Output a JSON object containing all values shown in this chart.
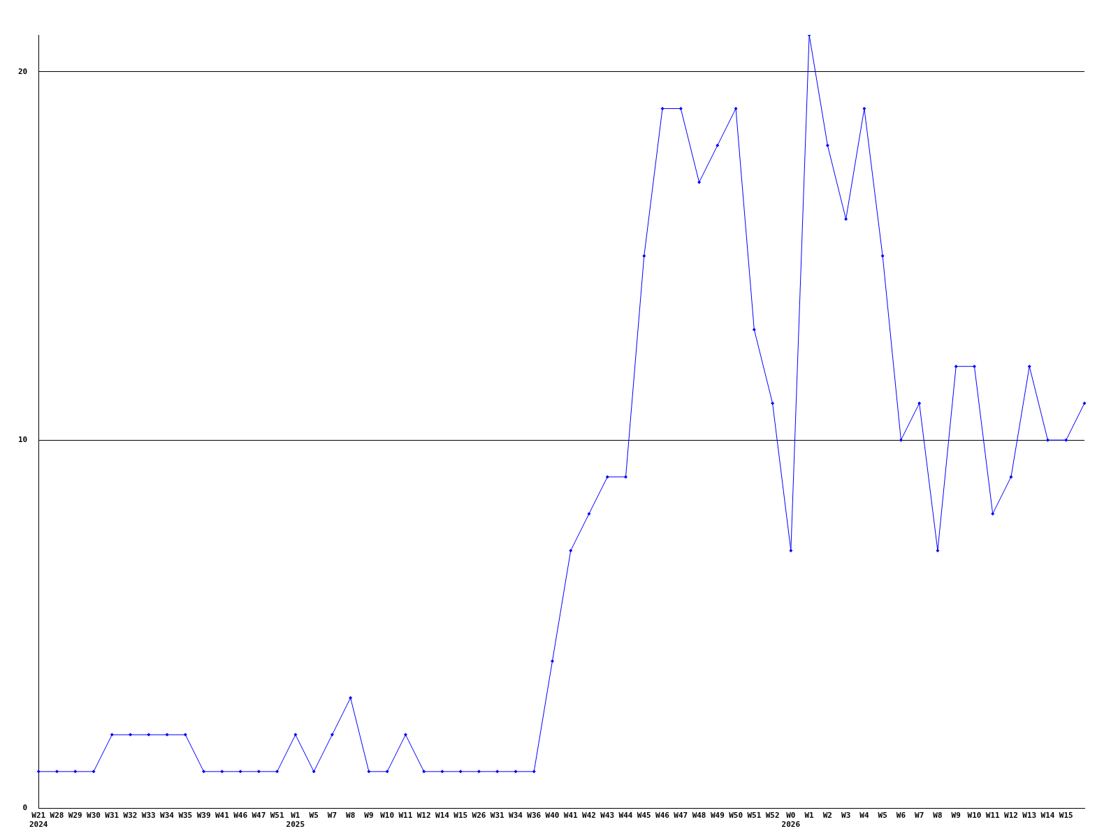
{
  "chart_data": {
    "type": "line",
    "categories": [
      "W21\n2024",
      "W28",
      "W29",
      "W30",
      "W31",
      "W32",
      "W33",
      "W34",
      "W35",
      "W39",
      "W41",
      "W46",
      "W47",
      "W51",
      "W1\n2025",
      "W5",
      "W7",
      "W8",
      "W9",
      "W10",
      "W11",
      "W12",
      "W14",
      "W15",
      "W26",
      "W31",
      "W34",
      "W36",
      "W40",
      "W41",
      "W42",
      "W43",
      "W44",
      "W45",
      "W46",
      "W47",
      "W48",
      "W49",
      "W50",
      "W51",
      "W52",
      "W0\n2026",
      "W1",
      "W2",
      "W3",
      "W4",
      "W5",
      "W6",
      "W7",
      "W8",
      "W9",
      "W10",
      "W11",
      "W12",
      "W13",
      "W14",
      "W15",
      null
    ],
    "series": [
      {
        "color": "#0000ff",
        "values": [
          1,
          1,
          1,
          1,
          2,
          2,
          2,
          2,
          2,
          1,
          1,
          1,
          1,
          1,
          2,
          1,
          2,
          3,
          1,
          1,
          2,
          1,
          1,
          1,
          1,
          1,
          1,
          1,
          4,
          7,
          8,
          9,
          9,
          15,
          19,
          19,
          17,
          18,
          19,
          13,
          11,
          7,
          21,
          18,
          16,
          19,
          15,
          10,
          11,
          7,
          12,
          12,
          8,
          9,
          12,
          10,
          10,
          11
        ]
      }
    ],
    "ylim": [
      0,
      21
    ],
    "yticks": [
      0,
      10,
      20
    ],
    "grid": "y",
    "legend": false,
    "marker": "diamond",
    "line_style": "solid"
  }
}
